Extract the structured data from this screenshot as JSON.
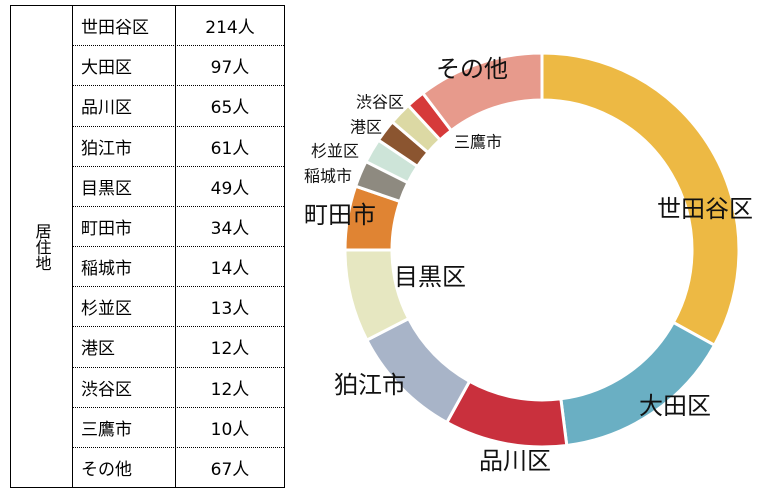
{
  "table": {
    "header": "居住地",
    "rows": [
      [
        "世田谷区",
        "214人"
      ],
      [
        "大田区",
        "97人"
      ],
      [
        "品川区",
        "65人"
      ],
      [
        "狛江市",
        "61人"
      ],
      [
        "目黒区",
        "49人"
      ],
      [
        "町田市",
        "34人"
      ],
      [
        "稲城市",
        "14人"
      ],
      [
        "杉並区",
        "13人"
      ],
      [
        "港区",
        "12人"
      ],
      [
        "渋谷区",
        "12人"
      ],
      [
        "三鷹市",
        "10人"
      ],
      [
        "その他",
        "67人"
      ]
    ]
  },
  "chart_data": {
    "type": "donut",
    "categories": [
      "世田谷区",
      "大田区",
      "品川区",
      "狛江市",
      "目黒区",
      "町田市",
      "稲城市",
      "杉並区",
      "港区",
      "渋谷区",
      "三鷹市",
      "その他"
    ],
    "values": [
      214,
      97,
      65,
      61,
      49,
      34,
      14,
      13,
      12,
      12,
      10,
      67
    ],
    "colors": [
      "#edb944",
      "#6aafc3",
      "#c9303d",
      "#a8b4c8",
      "#e6e7c1",
      "#e08433",
      "#8e8a80",
      "#cde4d8",
      "#8b5530",
      "#dcd9a4",
      "#d63a3a",
      "#e79a8c"
    ]
  }
}
